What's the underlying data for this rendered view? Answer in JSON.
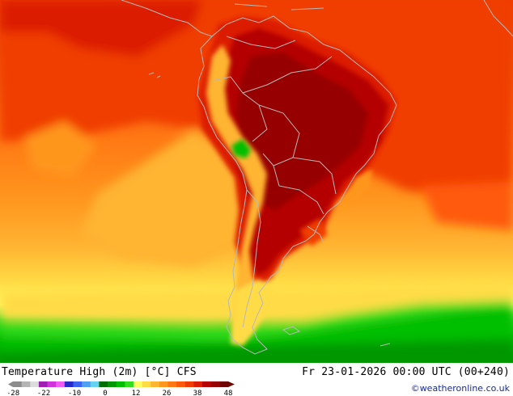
{
  "map": {
    "title": "Temperature High (2m) [°C] CFS",
    "valid_time": "Fr 23-01-2026 00:00 UTC (00+240)",
    "credit": "©weatheronline.co.uk",
    "region": "South America",
    "colorbar": {
      "tick_labels": [
        "-28",
        "-22",
        "-10",
        "0",
        "12",
        "26",
        "38",
        "48"
      ],
      "colors": [
        "#8c8c8c",
        "#b4b4b4",
        "#dcdcdc",
        "#a01eb4",
        "#d232dc",
        "#f05af0",
        "#2828c8",
        "#3c64f0",
        "#50a0f0",
        "#64d2f0",
        "#006e00",
        "#009600",
        "#00be00",
        "#32dc1e",
        "#ffff64",
        "#ffdc46",
        "#ffb432",
        "#ff961e",
        "#ff7814",
        "#ff5a0a",
        "#f03c00",
        "#dc1e00",
        "#b40000",
        "#960000",
        "#6e0000"
      ]
    }
  }
}
